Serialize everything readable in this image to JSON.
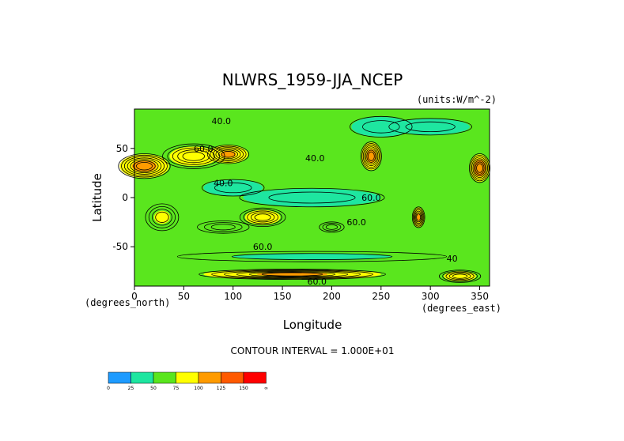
{
  "chart_data": {
    "type": "heatmap",
    "title": "NLWRS_1959-JJA_NCEP",
    "units_note": "(units:W/m^-2)",
    "xlabel": "Longitude",
    "ylabel": "Latitude",
    "x_unit_note": "(degrees_east)",
    "y_unit_note": "(degrees_north)",
    "xlim": [
      0,
      360
    ],
    "ylim": [
      -90,
      90
    ],
    "x_ticks": [
      "0",
      "50",
      "100",
      "150",
      "200",
      "250",
      "300",
      "350"
    ],
    "x_tick_values": [
      0,
      50,
      100,
      150,
      200,
      250,
      300,
      350
    ],
    "y_ticks": [
      "50",
      "0",
      "-50"
    ],
    "y_tick_values": [
      50,
      0,
      -50
    ],
    "contour_interval_text": "CONTOUR INTERVAL = 1.000E+01",
    "contour_labels": [
      {
        "text": "40.0",
        "lon": 88,
        "lat": 78
      },
      {
        "text": "60.0",
        "lon": 70,
        "lat": 50
      },
      {
        "text": "40.0",
        "lon": 183,
        "lat": 40
      },
      {
        "text": "40.0",
        "lon": 90,
        "lat": 15
      },
      {
        "text": "60.0",
        "lon": 240,
        "lat": 0
      },
      {
        "text": "60.0",
        "lon": 225,
        "lat": -25
      },
      {
        "text": "60.0",
        "lon": 130,
        "lat": -50
      },
      {
        "text": "40",
        "lon": 322,
        "lat": -62
      },
      {
        "text": "60.0",
        "lon": 185,
        "lat": -85
      }
    ],
    "fields": [
      {
        "lon": 10,
        "lat": 32,
        "value": 115,
        "rx": 25,
        "ry": 12
      },
      {
        "lon": 60,
        "lat": 42,
        "value": 95,
        "rx": 30,
        "ry": 12
      },
      {
        "lon": 95,
        "lat": 44,
        "value": 110,
        "rx": 20,
        "ry": 9
      },
      {
        "lon": 350,
        "lat": 30,
        "value": 120,
        "rx": 10,
        "ry": 14
      },
      {
        "lon": 240,
        "lat": 42,
        "value": 115,
        "rx": 10,
        "ry": 14
      },
      {
        "lon": 130,
        "lat": -20,
        "value": 98,
        "rx": 22,
        "ry": 9
      },
      {
        "lon": 28,
        "lat": -20,
        "value": 85,
        "rx": 16,
        "ry": 13
      },
      {
        "lon": 200,
        "lat": -30,
        "value": 78,
        "rx": 12,
        "ry": 5
      },
      {
        "lon": 90,
        "lat": -30,
        "value": 75,
        "rx": 25,
        "ry": 6
      },
      {
        "lon": 288,
        "lat": -20,
        "value": 110,
        "rx": 6,
        "ry": 10
      },
      {
        "lon": 160,
        "lat": -78,
        "value": 110,
        "rx": 90,
        "ry": 5
      },
      {
        "lon": 330,
        "lat": -80,
        "value": 95,
        "rx": 20,
        "ry": 6
      },
      {
        "lon": 300,
        "lat": 72,
        "value": 40,
        "rx": 40,
        "ry": 8
      },
      {
        "lon": 180,
        "lat": 0,
        "value": 40,
        "rx": 70,
        "ry": 9
      },
      {
        "lon": 100,
        "lat": 10,
        "value": 42,
        "rx": 30,
        "ry": 8
      },
      {
        "lon": 250,
        "lat": 72,
        "value": 38,
        "rx": 30,
        "ry": 10
      },
      {
        "lon": 180,
        "lat": -60,
        "value": 45,
        "rx": 130,
        "ry": 5
      }
    ],
    "colorbar": {
      "colors": [
        "#1e9bff",
        "#1ee6a0",
        "#5ae61e",
        "#ffff00",
        "#ff9b00",
        "#ff5a00",
        "#ff0000"
      ],
      "labels": [
        "0",
        "25",
        "50",
        "75",
        "100",
        "125",
        "150",
        "∞"
      ]
    },
    "grid": false,
    "legend": "bottom-left colorbar"
  }
}
